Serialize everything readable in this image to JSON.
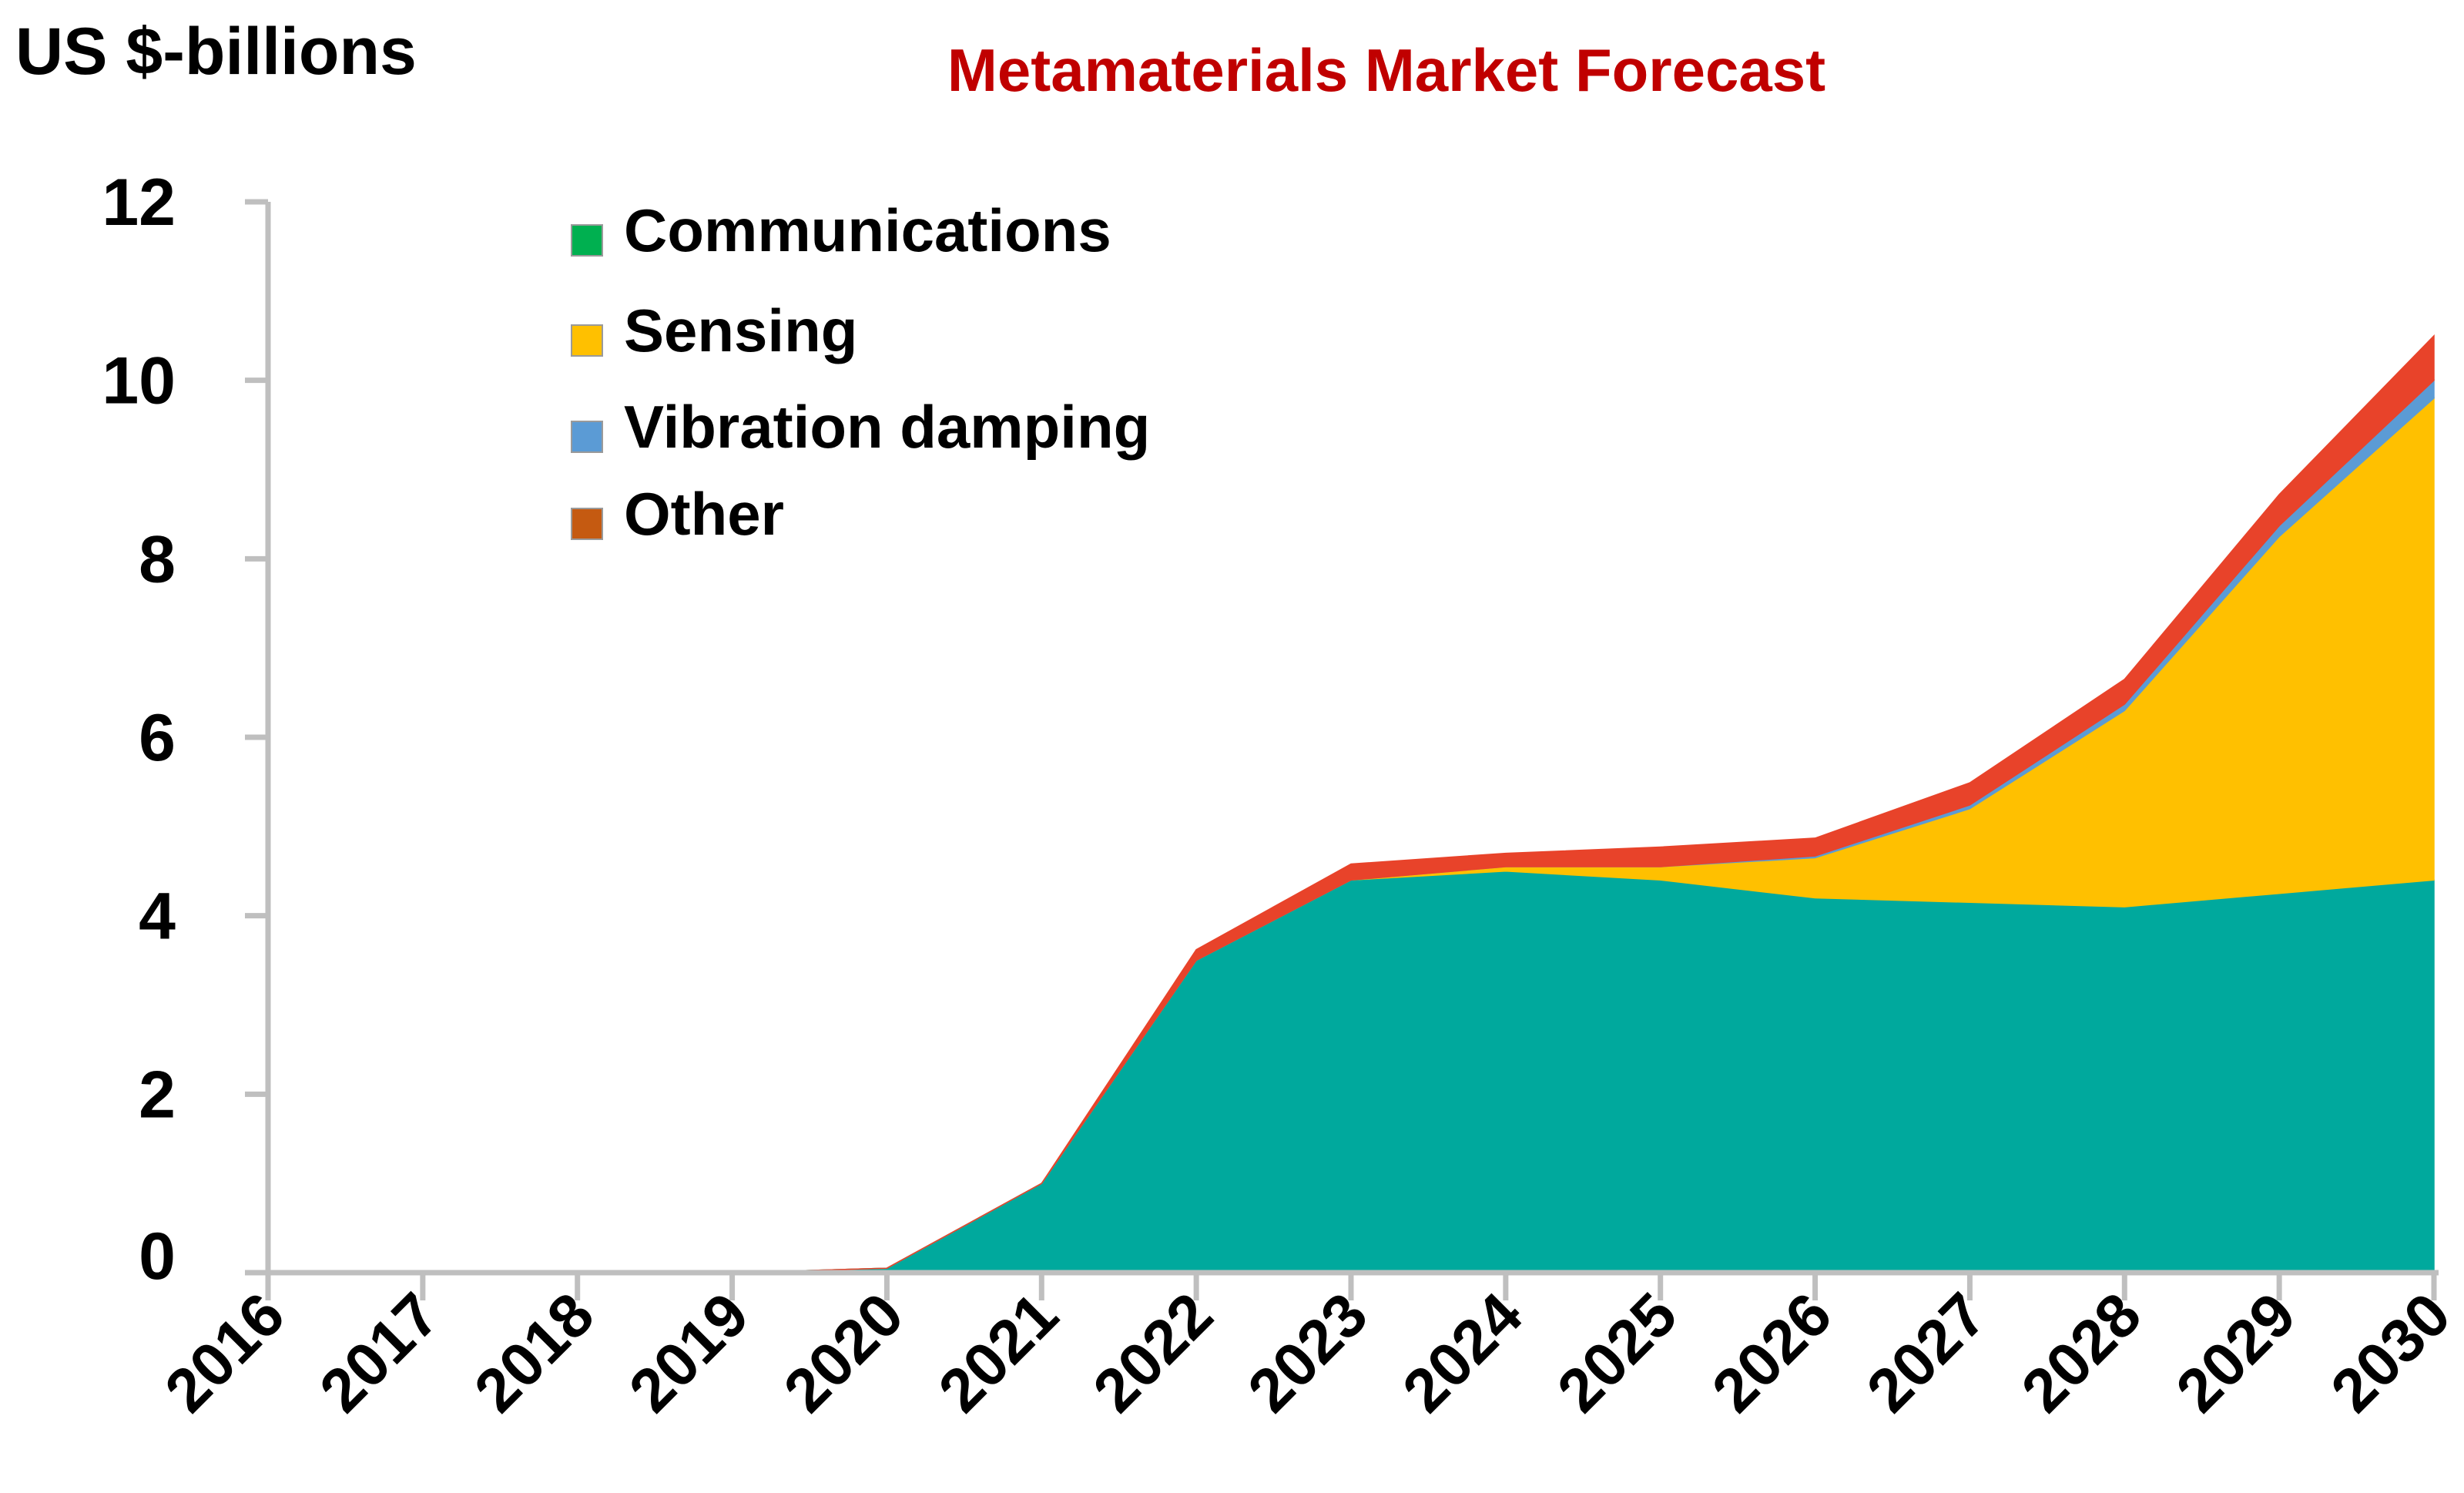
{
  "chart_data": {
    "type": "area",
    "stacked": true,
    "title": "Metamaterials Market Forecast",
    "ylabel": "US $-billions",
    "xlabel": "",
    "x": [
      2016,
      2017,
      2018,
      2019,
      2020,
      2021,
      2022,
      2023,
      2024,
      2025,
      2026,
      2027,
      2028,
      2029,
      2030
    ],
    "x_tick_labels": [
      "2016",
      "2017",
      "2018",
      "2019",
      "2020",
      "2021",
      "2022",
      "2023",
      "2024",
      "2025",
      "2026",
      "2027",
      "2028",
      "2029",
      "2030"
    ],
    "ylim": [
      0,
      12
    ],
    "y_ticks": [
      0,
      2,
      4,
      6,
      8,
      10,
      12
    ],
    "y_tick_labels": [
      "0",
      "2",
      "4",
      "6",
      "8",
      "10",
      "12"
    ],
    "legend_position": "top-left",
    "grid": false,
    "series": [
      {
        "name": "Communications",
        "color": "#00a99d",
        "legend_color": "#00b050",
        "values": [
          0,
          0,
          0,
          0,
          0.05,
          1.0,
          3.5,
          4.4,
          4.5,
          4.4,
          4.2,
          4.15,
          4.1,
          4.25,
          4.4
        ]
      },
      {
        "name": "Sensing",
        "color": "#ffc000",
        "legend_color": "#ffc000",
        "values": [
          0,
          0,
          0,
          0,
          0,
          0,
          0,
          0,
          0.05,
          0.15,
          0.45,
          1.05,
          2.2,
          4.0,
          5.4
        ]
      },
      {
        "name": "Vibration damping",
        "color": "#5b9bd5",
        "legend_color": "#5b9bd5",
        "values": [
          0,
          0,
          0,
          0,
          0,
          0,
          0,
          0,
          0,
          0,
          0.02,
          0.04,
          0.07,
          0.12,
          0.2
        ]
      },
      {
        "name": "Other",
        "color": "#e8432a",
        "legend_color": "#c55a11",
        "values": [
          0,
          0,
          0,
          0,
          0,
          0,
          0.12,
          0.18,
          0.15,
          0.22,
          0.2,
          0.25,
          0.28,
          0.35,
          0.5
        ]
      }
    ],
    "axis_color": "#bfbfbf",
    "title_color": "#c00000",
    "text_color": "#000000"
  }
}
